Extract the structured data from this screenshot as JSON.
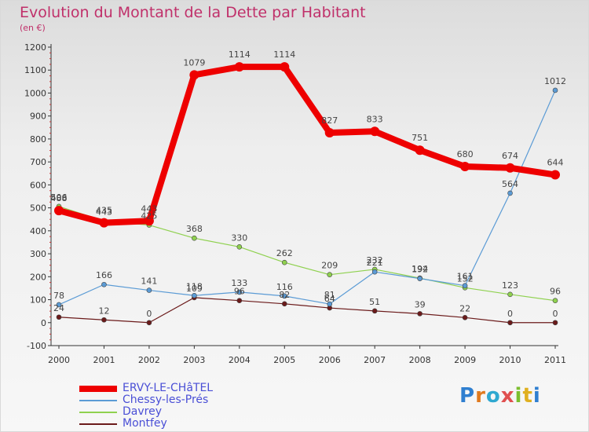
{
  "title": "Evolution du Montant de la Dette par Habitant",
  "subtitle": "(en €)",
  "brand": "Proxiti",
  "chart_data": {
    "type": "line",
    "title": "Evolution du Montant de la Dette par Habitant",
    "subtitle": "(en €)",
    "x": [
      "2000",
      "2001",
      "2002",
      "2003",
      "2004",
      "2005",
      "2006",
      "2007",
      "2008",
      "2009",
      "2010",
      "2011"
    ],
    "y_ticks": [
      "-100",
      "0",
      "100",
      "200",
      "300",
      "400",
      "500",
      "600",
      "700",
      "800",
      "900",
      "1000",
      "1100",
      "1200"
    ],
    "ylim": [
      -100,
      1200
    ],
    "grid": false,
    "legend_position": "bottom-left",
    "series": [
      {
        "name": "ERVY-LE-CHâTEL",
        "color": "#ee0000",
        "values": [
          488,
          435,
          443,
          1079,
          1114,
          1114,
          827,
          833,
          751,
          680,
          674,
          644
        ],
        "labels": [
          "488",
          "435",
          "443",
          "1079",
          "1114",
          "1114",
          "827",
          "833",
          "751",
          "680",
          "674",
          "644"
        ]
      },
      {
        "name": "Chessy-les-Prés",
        "color": "#5b9bd5",
        "values": [
          78,
          166,
          141,
          118,
          133,
          116,
          81,
          221,
          192,
          161,
          564,
          1012
        ],
        "labels": [
          "78",
          "166",
          "141",
          "118",
          "133",
          "116",
          "81",
          "221",
          "192",
          "161",
          "564",
          "1012"
        ]
      },
      {
        "name": "Davrey",
        "color": "#8fd14f",
        "values": [
          506,
          443,
          425,
          368,
          330,
          262,
          209,
          232,
          194,
          152,
          123,
          96
        ],
        "labels": [
          "506",
          "443",
          "425",
          "368",
          "330",
          "262",
          "209",
          "232",
          "194",
          "152",
          "123",
          "96"
        ]
      },
      {
        "name": "Montfey",
        "color": "#6b1a1a",
        "values": [
          24,
          12,
          0,
          109,
          96,
          82,
          64,
          51,
          39,
          22,
          0,
          0
        ],
        "labels": [
          "24",
          "12",
          "0",
          "109",
          "96",
          "82",
          "64",
          "51",
          "39",
          "22",
          "0",
          "0"
        ]
      }
    ]
  }
}
